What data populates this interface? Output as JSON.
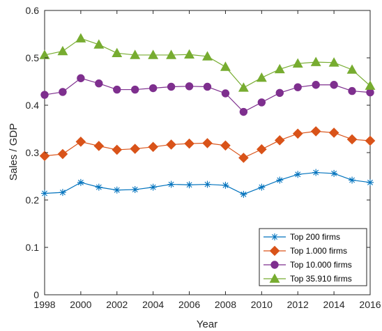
{
  "chart_data": {
    "type": "line",
    "title": "",
    "xlabel": "Year",
    "ylabel": "Sales / GDP",
    "xlim": [
      1998,
      2016
    ],
    "ylim": [
      0,
      0.6
    ],
    "x_ticks": [
      "1998",
      "2000",
      "2002",
      "2004",
      "2006",
      "2008",
      "2010",
      "2012",
      "2014",
      "2016"
    ],
    "y_ticks": [
      "0",
      "0.1",
      "0.2",
      "0.3",
      "0.4",
      "0.5",
      "0.6"
    ],
    "grid": false,
    "legend_position": "bottom-right",
    "x": [
      1998,
      1999,
      2000,
      2001,
      2002,
      2003,
      2004,
      2005,
      2006,
      2007,
      2008,
      2009,
      2010,
      2011,
      2012,
      2013,
      2014,
      2015,
      2016
    ],
    "series": [
      {
        "name": "Top 200 firms",
        "color": "#0072BD",
        "marker": "asterisk",
        "values": [
          0.214,
          0.216,
          0.237,
          0.227,
          0.221,
          0.222,
          0.227,
          0.233,
          0.232,
          0.233,
          0.231,
          0.212,
          0.227,
          0.242,
          0.254,
          0.258,
          0.256,
          0.242,
          0.237
        ]
      },
      {
        "name": "Top 1.000 firms",
        "color": "#D95319",
        "marker": "diamond",
        "values": [
          0.293,
          0.297,
          0.323,
          0.314,
          0.306,
          0.308,
          0.312,
          0.317,
          0.319,
          0.32,
          0.315,
          0.289,
          0.307,
          0.326,
          0.34,
          0.345,
          0.342,
          0.328,
          0.325
        ]
      },
      {
        "name": "Top 10.000 firms",
        "color": "#7E2F8E",
        "marker": "circle",
        "values": [
          0.422,
          0.428,
          0.457,
          0.446,
          0.433,
          0.433,
          0.436,
          0.439,
          0.44,
          0.439,
          0.425,
          0.386,
          0.406,
          0.426,
          0.438,
          0.443,
          0.443,
          0.43,
          0.427
        ]
      },
      {
        "name": "Top 35.910 firms",
        "color": "#77AC30",
        "marker": "triangle",
        "values": [
          0.506,
          0.514,
          0.541,
          0.528,
          0.51,
          0.506,
          0.506,
          0.506,
          0.507,
          0.503,
          0.481,
          0.437,
          0.458,
          0.476,
          0.488,
          0.491,
          0.49,
          0.475,
          0.441
        ]
      }
    ]
  }
}
